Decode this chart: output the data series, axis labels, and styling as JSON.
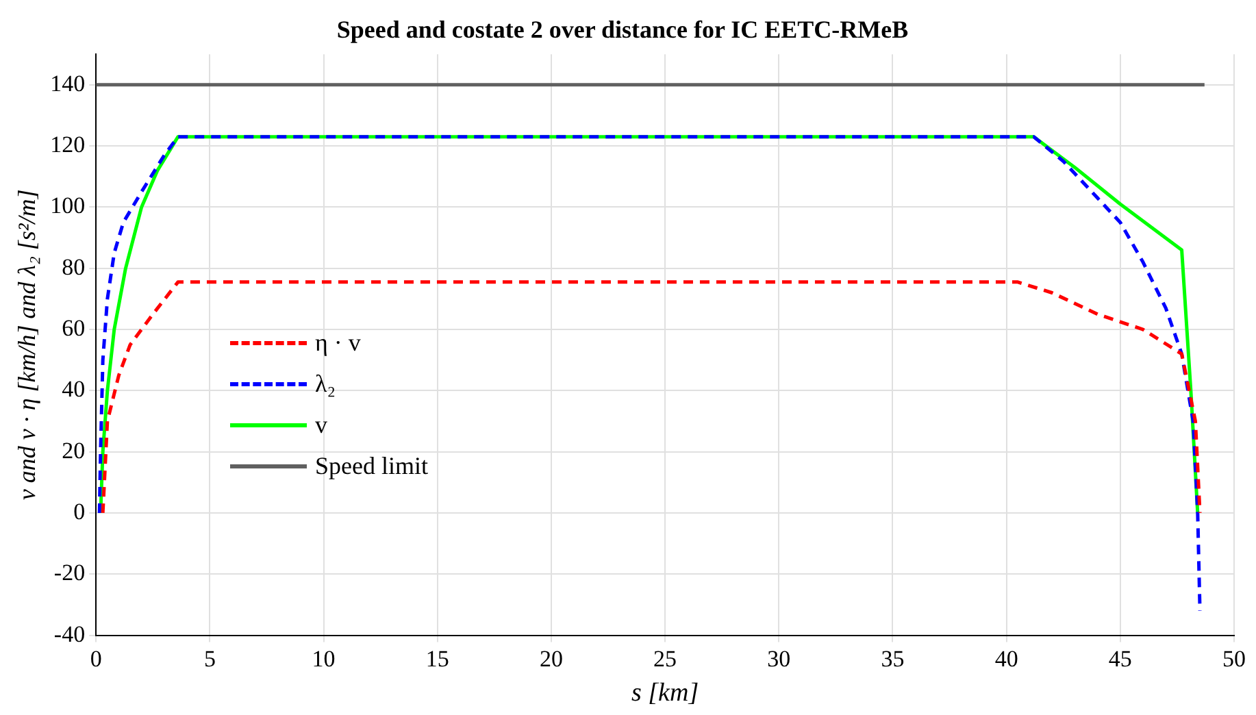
{
  "chart_data": {
    "type": "line",
    "title": "Speed and costate 2 over distance for IC EETC-RMeB",
    "xlabel": "s [km]",
    "ylabel": "v and v · η [km/h] and λ₂ [s²/m]",
    "xlim": [
      0,
      50
    ],
    "xticks": [
      0,
      5,
      10,
      15,
      20,
      25,
      30,
      35,
      40,
      45,
      50
    ],
    "ylim": [
      -40,
      150
    ],
    "yticks": [
      -40,
      -20,
      0,
      20,
      40,
      60,
      80,
      100,
      120,
      140
    ],
    "grid": true,
    "legend": "left",
    "marker": "none",
    "series": [
      {
        "name": "η · v",
        "color": "#ff0000",
        "line_style": "dashed",
        "x": [
          0.3,
          0.5,
          1,
          1.5,
          2.5,
          3.6,
          10,
          20,
          30,
          40.5,
          42,
          44,
          46,
          47.7,
          48.3,
          48.5
        ],
        "values": [
          0,
          30,
          45,
          55,
          65,
          75.5,
          75.5,
          75.5,
          75.5,
          75.5,
          72,
          65,
          60,
          52,
          30,
          0
        ]
      },
      {
        "name": "λ₂",
        "color": "#0000ff",
        "line_style": "dashed",
        "x": [
          0.15,
          0.2,
          0.3,
          0.5,
          0.8,
          1.2,
          2,
          3,
          3.6,
          10,
          20,
          30,
          41.2,
          42.5,
          44,
          45,
          46,
          47,
          47.7,
          48.2,
          48.4,
          48.5
        ],
        "values": [
          0,
          20,
          50,
          70,
          85,
          95,
          105,
          117,
          123,
          123,
          123,
          123,
          123,
          115,
          103,
          95,
          82,
          67,
          52,
          30,
          0,
          -32
        ]
      },
      {
        "name": "v",
        "color": "#00ff00",
        "line_style": "solid",
        "x": [
          0.2,
          0.3,
          0.5,
          0.8,
          1.3,
          2,
          2.7,
          3.6,
          10,
          20,
          30,
          41.2,
          43,
          45,
          47.7,
          48.1,
          48.4
        ],
        "values": [
          0,
          20,
          40,
          60,
          80,
          100,
          112,
          123,
          123,
          123,
          123,
          123,
          113,
          101,
          86,
          40,
          0
        ]
      },
      {
        "name": "Speed limit",
        "color": "#606060",
        "line_style": "solid",
        "x": [
          0,
          48.7
        ],
        "values": [
          140,
          140
        ]
      }
    ]
  }
}
